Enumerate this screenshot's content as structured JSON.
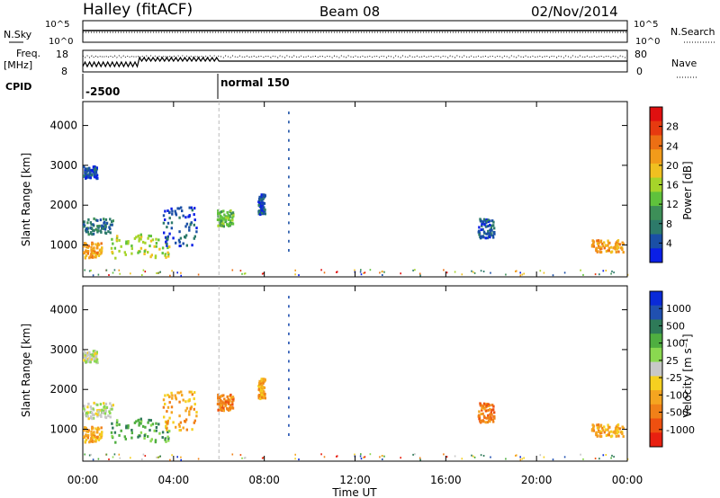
{
  "header": {
    "station": "Halley (fitACF)",
    "beam": "Beam 08",
    "date": "02/Nov/2014"
  },
  "strips": {
    "nsky_label": "N.Sky",
    "nsky_ticks": [
      "10^5",
      "10^0"
    ],
    "nsearch_label": "N.Search",
    "nsearch_ticks": [
      "10^5",
      "10^0"
    ],
    "freq_label": "Freq.",
    "freq_unit": "[MHz]",
    "freq_ticks": [
      "18",
      "8"
    ],
    "nave_label": "Nave",
    "nave_ticks": [
      "80",
      "0"
    ],
    "cpid_label": "CPID",
    "cpid_segments": [
      {
        "label": "-2500",
        "start_hour": 0
      },
      {
        "label": "normal 150",
        "start_hour": 6
      }
    ]
  },
  "chart_data": [
    {
      "type": "heatmap",
      "title": "",
      "xlabel": "Time UT",
      "ylabel": "Slant Range [km]",
      "xlim": [
        0,
        24
      ],
      "ylim": [
        200,
        4600
      ],
      "x_ticks": [
        "00:00",
        "04:00",
        "08:00",
        "12:00",
        "16:00",
        "20:00",
        "00:00"
      ],
      "y_ticks": [
        1000,
        2000,
        3000,
        4000
      ],
      "colorbar": {
        "label": "Power [dB]",
        "ticks": [
          "4",
          "8",
          "12",
          "16",
          "20",
          "24",
          "28"
        ],
        "colors": [
          "#0a1fe6",
          "#1a4fa6",
          "#2d7a6a",
          "#3d8f58",
          "#5fc23c",
          "#a6d42a",
          "#f0c020",
          "#f29b1a",
          "#ec6f14",
          "#e63a10",
          "#e01010"
        ]
      },
      "regions": [
        {
          "t": [
            0.0,
            0.8
          ],
          "r": [
            700,
            1100
          ],
          "level": 7
        },
        {
          "t": [
            0.0,
            1.3
          ],
          "r": [
            1300,
            1700
          ],
          "level": 2
        },
        {
          "t": [
            0.0,
            0.6
          ],
          "r": [
            2700,
            3000
          ],
          "level": 1
        },
        {
          "t": [
            1.2,
            3.8
          ],
          "r": [
            700,
            1300
          ],
          "level": 5
        },
        {
          "t": [
            3.5,
            5.0
          ],
          "r": [
            1000,
            2000
          ],
          "level": 1
        },
        {
          "t": [
            5.9,
            6.6
          ],
          "r": [
            1500,
            1900
          ],
          "level": 4
        },
        {
          "t": [
            7.7,
            8.0
          ],
          "r": [
            1800,
            2300
          ],
          "level": 1
        },
        {
          "t": [
            17.4,
            18.1
          ],
          "r": [
            1200,
            1700
          ],
          "level": 1
        },
        {
          "t": [
            22.4,
            23.8
          ],
          "r": [
            850,
            1150
          ],
          "level": 7
        }
      ]
    },
    {
      "type": "heatmap",
      "title": "",
      "xlabel": "Time UT",
      "ylabel": "Slant Range [km]",
      "xlim": [
        0,
        24
      ],
      "ylim": [
        200,
        4600
      ],
      "x_ticks": [
        "00:00",
        "04:00",
        "08:00",
        "12:00",
        "16:00",
        "20:00",
        "00:00"
      ],
      "y_ticks": [
        1000,
        2000,
        3000,
        4000
      ],
      "colorbar": {
        "label": "Velocity [m s⁻¹]",
        "ticks": [
          "1000",
          "500",
          "100",
          "25",
          "-25",
          "-100",
          "-500",
          "-1000"
        ],
        "colors": [
          "#0a2ad8",
          "#2050b0",
          "#2e7a58",
          "#4fae40",
          "#8ad850",
          "#c8c8c8",
          "#f5d020",
          "#f5a520",
          "#f08018",
          "#ee5010",
          "#e82010"
        ]
      },
      "regions": [
        {
          "t": [
            0.0,
            0.8
          ],
          "r": [
            700,
            1100
          ],
          "level": 7
        },
        {
          "t": [
            0.0,
            1.3
          ],
          "r": [
            1300,
            1700
          ],
          "level": 5
        },
        {
          "t": [
            0.0,
            0.6
          ],
          "r": [
            2700,
            3000
          ],
          "level": 5
        },
        {
          "t": [
            1.2,
            3.8
          ],
          "r": [
            700,
            1300
          ],
          "level": 3
        },
        {
          "t": [
            3.5,
            5.0
          ],
          "r": [
            1000,
            2000
          ],
          "level": 7
        },
        {
          "t": [
            5.9,
            6.6
          ],
          "r": [
            1500,
            1900
          ],
          "level": 8
        },
        {
          "t": [
            7.7,
            8.0
          ],
          "r": [
            1800,
            2300
          ],
          "level": 7
        },
        {
          "t": [
            17.4,
            18.1
          ],
          "r": [
            1200,
            1700
          ],
          "level": 8
        },
        {
          "t": [
            22.4,
            23.8
          ],
          "r": [
            850,
            1150
          ],
          "level": 7
        }
      ]
    }
  ]
}
